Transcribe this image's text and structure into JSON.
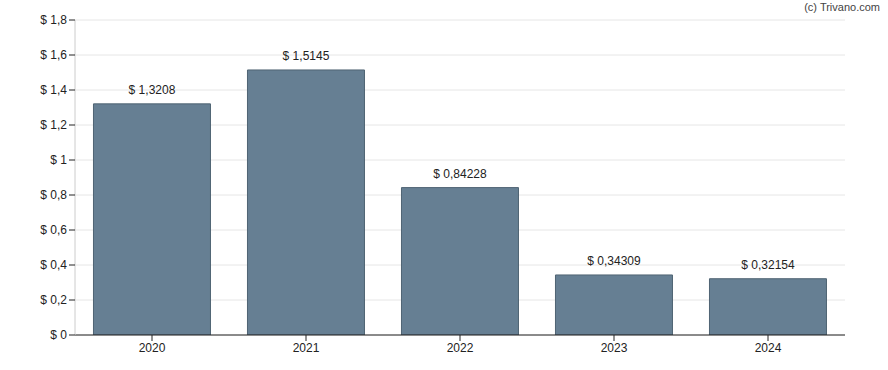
{
  "chart_data": {
    "type": "bar",
    "annotations": [
      "(c) Trivano.com"
    ],
    "categories": [
      "2020",
      "2021",
      "2022",
      "2023",
      "2024"
    ],
    "values": [
      1.3208,
      1.5145,
      0.84228,
      0.34309,
      0.32154
    ],
    "value_labels": [
      "$ 1,3208",
      "$ 1,5145",
      "$ 0,84228",
      "$ 0,34309",
      "$ 0,32154"
    ],
    "data_labels": true,
    "color": "#667f93",
    "ylim": [
      0,
      1.8
    ],
    "yticks": [
      {
        "value": 0,
        "label": "$ 0"
      },
      {
        "value": 0.2,
        "label": "$ 0,2"
      },
      {
        "value": 0.4,
        "label": "$ 0,4"
      },
      {
        "value": 0.6,
        "label": "$ 0,6"
      },
      {
        "value": 0.8,
        "label": "$ 0,8"
      },
      {
        "value": 1,
        "label": "$ 1"
      },
      {
        "value": 1.2,
        "label": "$ 1,2"
      },
      {
        "value": 1.4,
        "label": "$ 1,4"
      },
      {
        "value": 1.6,
        "label": "$ 1,6"
      },
      {
        "value": 1.8,
        "label": "$ 1,8"
      }
    ],
    "grid": true
  }
}
